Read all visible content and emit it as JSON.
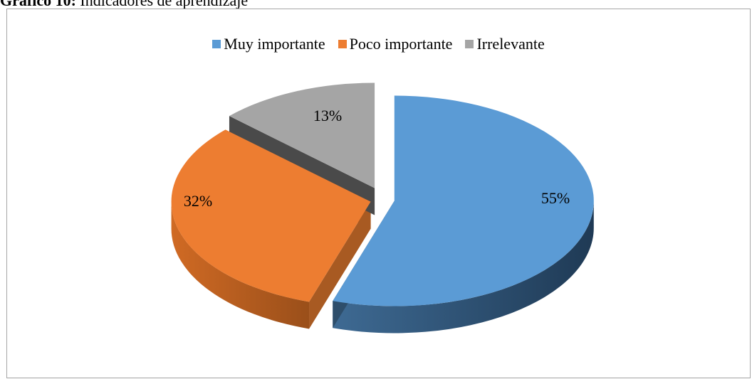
{
  "page": {
    "title_bold": "Gráfico 10:",
    "title_rest": " Indicadores de aprendizaje"
  },
  "chart_data": {
    "type": "pie",
    "title": "Gráfico 10: Indicadores de aprendizaje",
    "legend_position": "top",
    "categories": [
      "Muy importante",
      "Poco importante",
      "Irrelevante"
    ],
    "values": [
      55,
      32,
      13
    ],
    "data_labels": [
      "55%",
      "32%",
      "13%"
    ],
    "colors": [
      "#5b9bd5",
      "#ed7d31",
      "#a5a5a5"
    ],
    "side_colors": [
      "#2e4e6b",
      "#a85a22",
      "#4a4a4a"
    ],
    "style": "3d-exploded"
  }
}
